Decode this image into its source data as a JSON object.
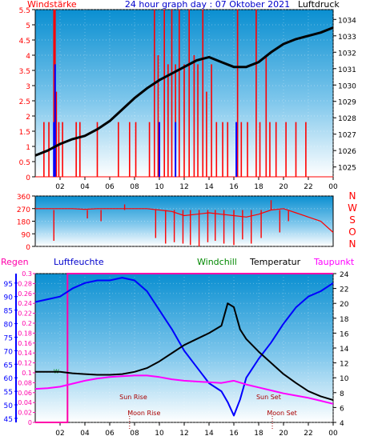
{
  "colors": {
    "wind_speed": "#ff0000",
    "wind_gust": "#0000ff",
    "pressure": "#000000",
    "humidity": "#0000ff",
    "temperature": "#000000",
    "dewpoint": "#ff00ff",
    "windchill": "#008800",
    "rain": "#ff00aa",
    "wind_dir": "#ff0000",
    "frame": "#000000"
  },
  "chart_data": [
    {
      "type": "line",
      "title": "24 hour graph day : 07 Oktober 2021",
      "left_label": "Windstärke",
      "right_label": "Luftdruck",
      "x_ticks": [
        "02",
        "04",
        "06",
        "08",
        "10",
        "12",
        "14",
        "16",
        "18",
        "20",
        "22",
        "00"
      ],
      "y_left_ticks": [
        "0",
        "0.5",
        "1",
        "1.5",
        "2",
        "2.5",
        "3",
        "3.5",
        "4",
        "4.5",
        "5",
        "5.5"
      ],
      "y_left_range": [
        0,
        5.5
      ],
      "y_right_ticks": [
        "1025",
        "1026",
        "1027",
        "1028",
        "1029",
        "1030",
        "1031",
        "1032",
        "1033",
        "1034"
      ],
      "y_right_range": [
        1024.4,
        1034.6
      ],
      "x_range_hours": [
        0,
        24
      ],
      "series": [
        {
          "key": "pressure",
          "axis": "right",
          "x": [
            0,
            1,
            2,
            3,
            4,
            5,
            6,
            7,
            8,
            9,
            10,
            11,
            12,
            13,
            14,
            15,
            16,
            17,
            18,
            19,
            20,
            21,
            22,
            23,
            24
          ],
          "y": [
            1025.7,
            1026.0,
            1026.4,
            1026.7,
            1026.9,
            1027.3,
            1027.8,
            1028.5,
            1029.2,
            1029.8,
            1030.3,
            1030.7,
            1031.1,
            1031.5,
            1031.7,
            1031.4,
            1031.1,
            1031.1,
            1031.4,
            1032.0,
            1032.5,
            1032.8,
            1033.0,
            1033.2,
            1033.5
          ]
        },
        {
          "key": "wind_baseline",
          "axis": "left",
          "x": [
            0,
            24
          ],
          "y": [
            0,
            0
          ]
        }
      ],
      "wind_bursts": [
        {
          "x": 0.7,
          "y": 1.8
        },
        {
          "x": 1.1,
          "y": 1.8
        },
        {
          "x": 1.5,
          "y": 5.5
        },
        {
          "x": 1.6,
          "y": 5.5
        },
        {
          "x": 1.7,
          "y": 2.8
        },
        {
          "x": 1.9,
          "y": 1.8
        },
        {
          "x": 2.2,
          "y": 1.8
        },
        {
          "x": 3.3,
          "y": 1.8
        },
        {
          "x": 3.6,
          "y": 1.8
        },
        {
          "x": 5.0,
          "y": 1.8
        },
        {
          "x": 6.7,
          "y": 1.8
        },
        {
          "x": 7.6,
          "y": 1.8
        },
        {
          "x": 8.1,
          "y": 1.8
        },
        {
          "x": 9.2,
          "y": 1.8
        },
        {
          "x": 9.6,
          "y": 5.5
        },
        {
          "x": 9.9,
          "y": 4.0
        },
        {
          "x": 10.4,
          "y": 5.5
        },
        {
          "x": 10.7,
          "y": 3.7
        },
        {
          "x": 11.0,
          "y": 5.5
        },
        {
          "x": 11.3,
          "y": 3.7
        },
        {
          "x": 11.6,
          "y": 5.5
        },
        {
          "x": 12.0,
          "y": 3.7
        },
        {
          "x": 12.4,
          "y": 5.5
        },
        {
          "x": 12.8,
          "y": 4.0
        },
        {
          "x": 13.1,
          "y": 3.7
        },
        {
          "x": 13.5,
          "y": 5.5
        },
        {
          "x": 13.8,
          "y": 2.8
        },
        {
          "x": 14.2,
          "y": 3.7
        },
        {
          "x": 14.6,
          "y": 1.8
        },
        {
          "x": 15.1,
          "y": 1.8
        },
        {
          "x": 15.5,
          "y": 1.8
        },
        {
          "x": 16.3,
          "y": 5.5
        },
        {
          "x": 16.6,
          "y": 1.8
        },
        {
          "x": 17.1,
          "y": 1.8
        },
        {
          "x": 17.8,
          "y": 5.5
        },
        {
          "x": 18.1,
          "y": 1.8
        },
        {
          "x": 18.6,
          "y": 4.0
        },
        {
          "x": 18.9,
          "y": 1.8
        },
        {
          "x": 19.4,
          "y": 1.8
        },
        {
          "x": 20.2,
          "y": 1.8
        },
        {
          "x": 21.0,
          "y": 1.8
        },
        {
          "x": 21.8,
          "y": 1.8
        }
      ],
      "gust_bursts": [
        {
          "x": 1.5,
          "y": 1.8
        },
        {
          "x": 1.6,
          "y": 3.7
        },
        {
          "x": 10.0,
          "y": 1.8
        },
        {
          "x": 11.3,
          "y": 1.8
        },
        {
          "x": 16.2,
          "y": 1.8
        }
      ]
    },
    {
      "type": "line",
      "right_label": "N W S O N",
      "y_ticks": [
        "0",
        "90",
        "180",
        "270",
        "360"
      ],
      "y_range": [
        0,
        360
      ],
      "x_range_hours": [
        0,
        24
      ],
      "series": [
        {
          "key": "wind_dir",
          "x": [
            0,
            1,
            2,
            3,
            4,
            5,
            6,
            7,
            8,
            9,
            10,
            11,
            12,
            13,
            14,
            15,
            16,
            17,
            18,
            19,
            20,
            21,
            22,
            23,
            24
          ],
          "y": [
            270,
            270,
            270,
            270,
            265,
            270,
            270,
            270,
            270,
            270,
            260,
            250,
            220,
            230,
            240,
            230,
            220,
            210,
            230,
            260,
            270,
            240,
            210,
            180,
            100
          ]
        }
      ],
      "spikes": [
        {
          "x": 1.5,
          "y": 40
        },
        {
          "x": 4.2,
          "y": 200
        },
        {
          "x": 5.3,
          "y": 180
        },
        {
          "x": 7.2,
          "y": 300
        },
        {
          "x": 9.7,
          "y": 60
        },
        {
          "x": 10.5,
          "y": 20
        },
        {
          "x": 11.2,
          "y": 30
        },
        {
          "x": 11.9,
          "y": 20
        },
        {
          "x": 12.5,
          "y": 10
        },
        {
          "x": 13.2,
          "y": 0
        },
        {
          "x": 13.9,
          "y": 30
        },
        {
          "x": 14.5,
          "y": 40
        },
        {
          "x": 15.2,
          "y": 20
        },
        {
          "x": 16.0,
          "y": 10
        },
        {
          "x": 16.7,
          "y": 50
        },
        {
          "x": 17.4,
          "y": 20
        },
        {
          "x": 18.2,
          "y": 60
        },
        {
          "x": 19.0,
          "y": 330
        },
        {
          "x": 19.7,
          "y": 100
        },
        {
          "x": 20.4,
          "y": 180
        }
      ]
    },
    {
      "type": "line",
      "labels": {
        "rain": "Regen",
        "humidity": "Luftfeuchte",
        "windchill": "Windchill",
        "temperature": "Temperatur",
        "dewpoint": "Taupunkt"
      },
      "x_ticks": [
        "02",
        "04",
        "06",
        "08",
        "10",
        "12",
        "14",
        "16",
        "18",
        "20",
        "22",
        "00"
      ],
      "x_range_hours": [
        0,
        24
      ],
      "rain_ticks": [
        "0",
        "0.02",
        "0.04",
        "0.06",
        "0.08",
        "0.1",
        "0.12",
        "0.14",
        "0.16",
        "0.18",
        "0.2",
        "0.22",
        "0.24",
        "0.26",
        "0.28",
        "0.3"
      ],
      "rain_range": [
        0,
        0.3
      ],
      "humidity_ticks": [
        "45",
        "50",
        "55",
        "60",
        "65",
        "70",
        "75",
        "80",
        "85",
        "90",
        "95"
      ],
      "humidity_range": [
        43.5,
        98.5
      ],
      "temp_ticks": [
        "4",
        "6",
        "8",
        "10",
        "12",
        "14",
        "16",
        "18",
        "20",
        "22",
        "24"
      ],
      "temp_range": [
        4,
        24
      ],
      "annotations": {
        "sun_rise": {
          "label": "Sun Rise",
          "x": 7.9
        },
        "sun_set": {
          "label": "Sun Set",
          "x": 18.8
        },
        "moon_rise": {
          "label": "Moon Rise",
          "x": 7.6
        },
        "moon_set": {
          "label": "Moon Set",
          "x": 19.1
        }
      },
      "windchill_marker": {
        "label": "W",
        "x": 1.7
      },
      "series": [
        {
          "key": "humidity",
          "x": [
            0,
            1,
            2,
            3,
            4,
            5,
            6,
            7,
            8,
            9,
            10,
            11,
            12,
            13,
            14,
            15,
            15.5,
            16,
            16.5,
            17,
            18,
            19,
            20,
            21,
            22,
            23,
            24
          ],
          "y": [
            88,
            89,
            90,
            93,
            95,
            96,
            96,
            97,
            96,
            92,
            85,
            78,
            70,
            64,
            58,
            55,
            51,
            46,
            52,
            60,
            67,
            73,
            80,
            86,
            90,
            92,
            95
          ]
        },
        {
          "key": "temperature",
          "x": [
            0,
            1,
            2,
            3,
            4,
            5,
            6,
            7,
            8,
            9,
            10,
            11,
            12,
            13,
            14,
            15,
            15.5,
            16,
            16.5,
            17,
            18,
            19,
            20,
            21,
            22,
            23,
            24
          ],
          "y": [
            10.8,
            10.8,
            10.8,
            10.6,
            10.5,
            10.4,
            10.4,
            10.5,
            10.8,
            11.3,
            12.2,
            13.3,
            14.4,
            15.2,
            16.0,
            17.0,
            20.0,
            19.5,
            16.5,
            15.2,
            13.5,
            12.0,
            10.5,
            9.3,
            8.2,
            7.5,
            7.0
          ]
        },
        {
          "key": "dewpoint",
          "x": [
            0,
            1,
            2,
            3,
            4,
            5,
            6,
            7,
            8,
            9,
            10,
            11,
            12,
            13,
            14,
            15,
            16,
            17,
            18,
            19,
            20,
            21,
            22,
            23,
            24
          ],
          "y": [
            8.5,
            8.6,
            8.8,
            9.2,
            9.6,
            9.9,
            10.1,
            10.2,
            10.3,
            10.3,
            10.1,
            9.8,
            9.6,
            9.5,
            9.4,
            9.3,
            9.6,
            9.1,
            8.7,
            8.3,
            7.9,
            7.6,
            7.3,
            6.9,
            6.5
          ]
        },
        {
          "key": "rain",
          "x": [
            0,
            2.6,
            2.6,
            24
          ],
          "y": [
            0,
            0,
            0.3,
            0.3
          ]
        }
      ]
    }
  ]
}
